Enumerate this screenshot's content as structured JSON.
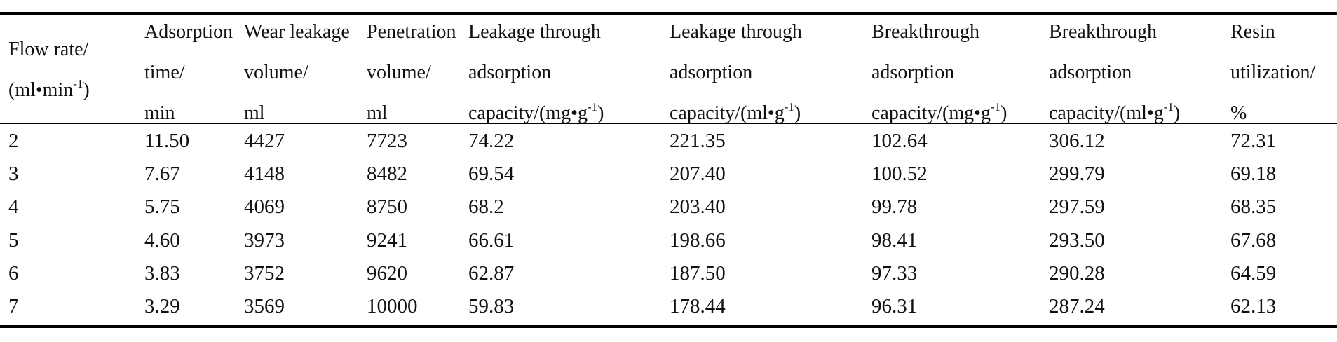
{
  "table": {
    "headers": [
      {
        "lines": [
          "Flow rate/",
          "(ml•min",
          "-1",
          ")"
        ],
        "kind": "flow"
      },
      {
        "lines": [
          "Adsorption",
          "time/",
          "min"
        ]
      },
      {
        "lines": [
          "Wear leakage",
          "volume/",
          "ml"
        ]
      },
      {
        "lines": [
          "Penetration",
          "volume/",
          "ml"
        ]
      },
      {
        "lines": [
          "Leakage through",
          "adsorption",
          "capacity/(mg•g",
          "-1",
          ")"
        ],
        "kind": "cap"
      },
      {
        "lines": [
          "Leakage through",
          "adsorption",
          "capacity/(ml•g",
          "-1",
          ")"
        ],
        "kind": "cap"
      },
      {
        "lines": [
          "Breakthrough",
          "adsorption",
          "capacity/(mg•g",
          "-1",
          ")"
        ],
        "kind": "cap"
      },
      {
        "lines": [
          "Breakthrough",
          "adsorption",
          "capacity/(ml•g",
          "-1",
          ")"
        ],
        "kind": "cap"
      },
      {
        "lines": [
          "Resin",
          "utilization/",
          "%"
        ]
      }
    ],
    "rows": [
      [
        "2",
        "11.50",
        "4427",
        "7723",
        "74.22",
        "221.35",
        "102.64",
        "306.12",
        "72.31"
      ],
      [
        "3",
        "7.67",
        "4148",
        "8482",
        "69.54",
        "207.40",
        "100.52",
        "299.79",
        "69.18"
      ],
      [
        "4",
        "5.75",
        "4069",
        "8750",
        "68.2",
        "203.40",
        "99.78",
        "297.59",
        "68.35"
      ],
      [
        "5",
        "4.60",
        "3973",
        "9241",
        "66.61",
        "198.66",
        "98.41",
        "293.50",
        "67.68"
      ],
      [
        "6",
        "3.83",
        "3752",
        "9620",
        "62.87",
        "187.50",
        "97.33",
        "290.28",
        "64.59"
      ],
      [
        "7",
        "3.29",
        "3569",
        "10000",
        "59.83",
        "178.44",
        "96.31",
        "287.24",
        "62.13"
      ]
    ]
  }
}
